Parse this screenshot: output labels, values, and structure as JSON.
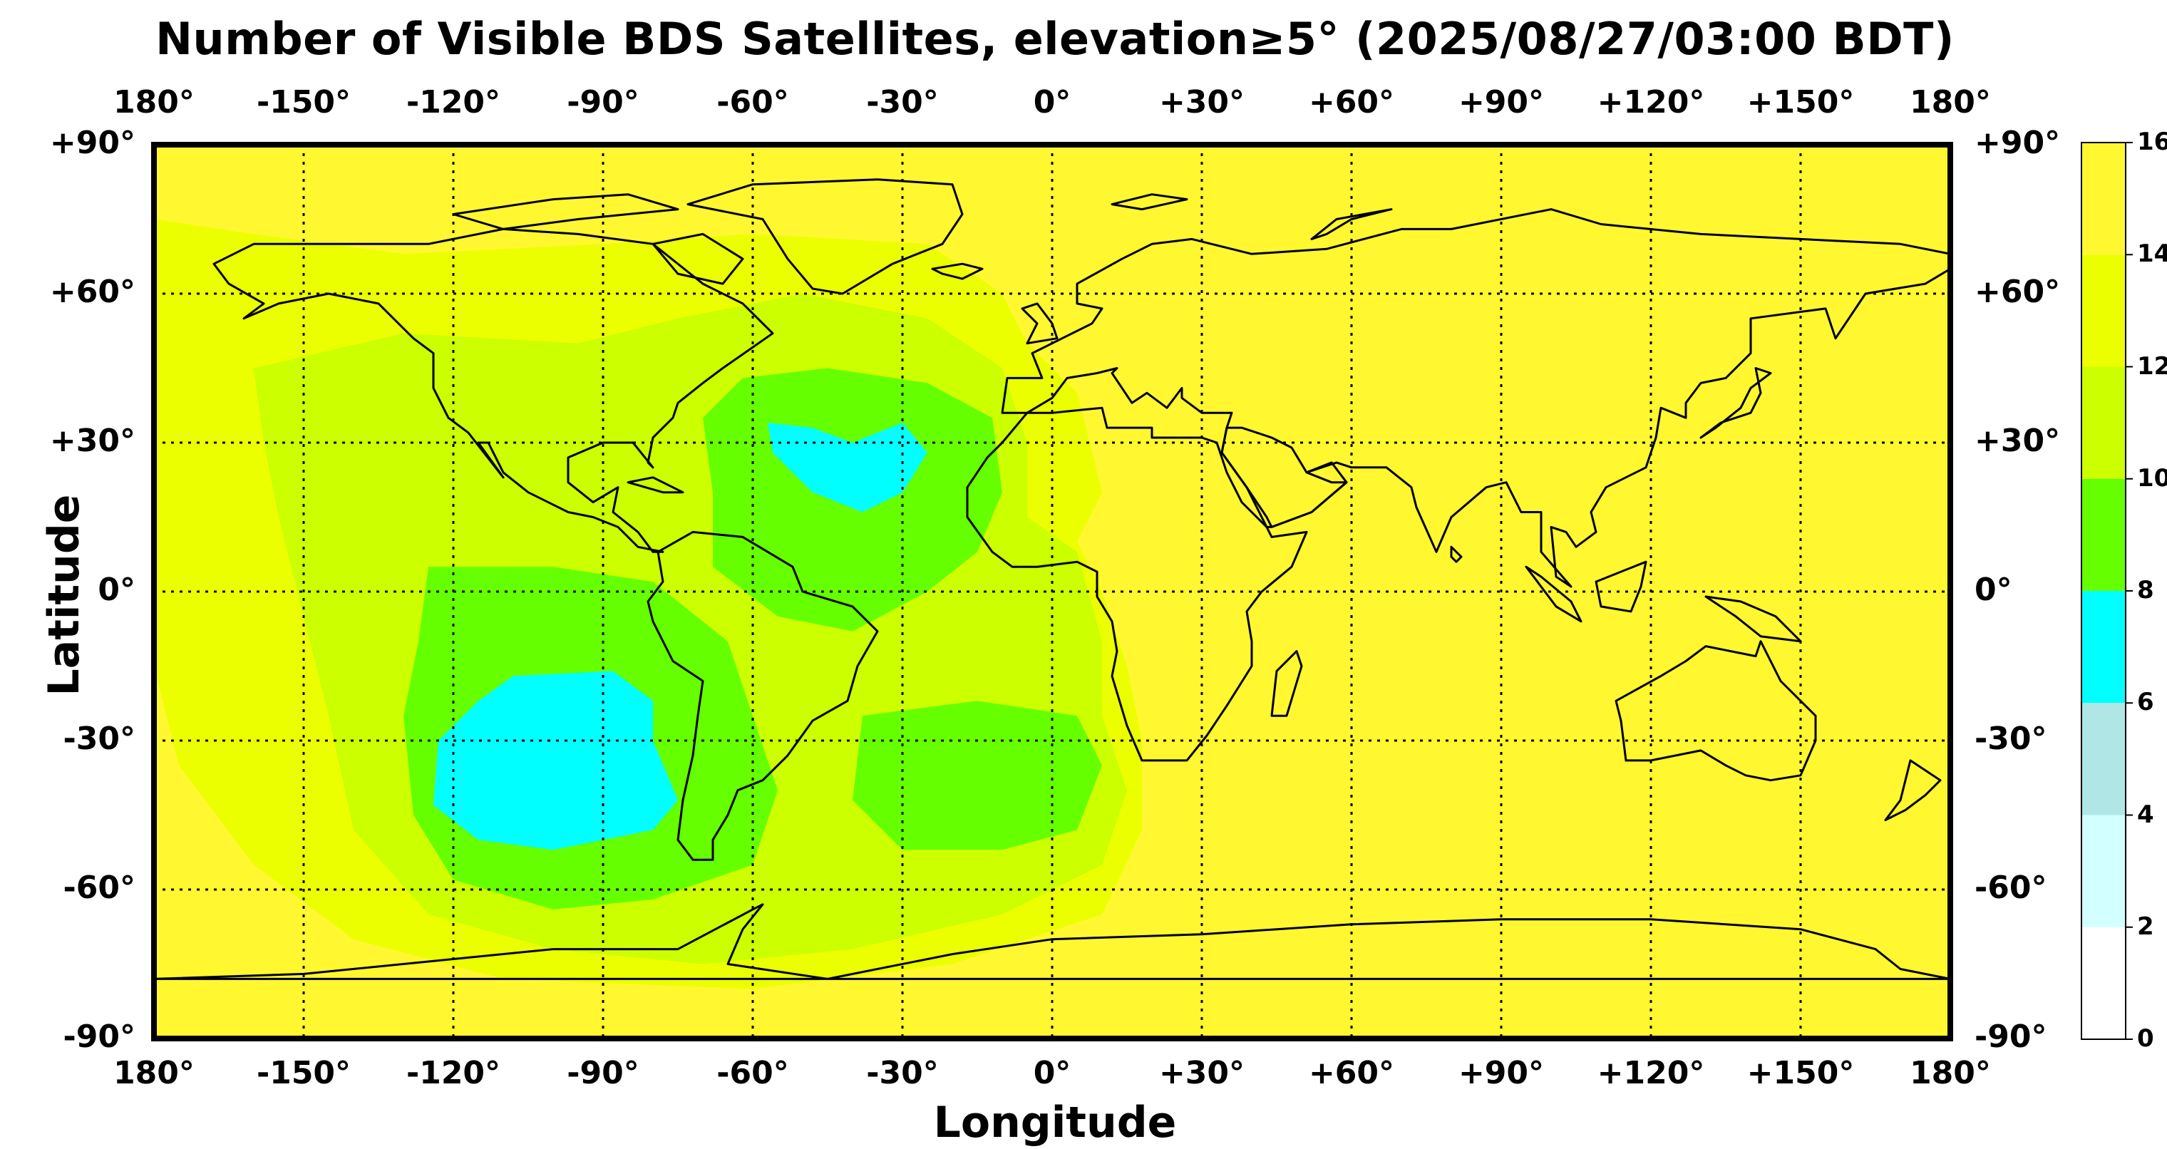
{
  "title": "Number of Visible BDS Satellites, elevation≥5° (2025/08/27/03:00 BDT)",
  "xlabel": "Longitude",
  "ylabel": "Latitude",
  "lon_ticks": [
    "180°",
    "-150°",
    "-120°",
    "-90°",
    "-60°",
    "-30°",
    "0°",
    "+30°",
    "+60°",
    "+90°",
    "+120°",
    "+150°",
    "180°"
  ],
  "lat_ticks": [
    "+90°",
    "+60°",
    "+30°",
    "0°",
    "-30°",
    "-60°",
    "-90°"
  ],
  "colorbar": {
    "ticks": [
      "0",
      "2",
      "4",
      "6",
      "8",
      "10",
      "12",
      "14",
      "16"
    ],
    "colors": [
      "#ffffff",
      "#d2ffff",
      "#b0e6e6",
      "#00ffff",
      "#00ffff",
      "#66ff00",
      "#ccff00",
      "#ecff00",
      "#fff730"
    ]
  },
  "chart_data": {
    "type": "heatmap",
    "title": "Number of Visible BDS Satellites, elevation≥5° (2025/08/27/03:00 BDT)",
    "xlabel": "Longitude",
    "ylabel": "Latitude",
    "xlim": [
      -180,
      180
    ],
    "ylim": [
      -90,
      90
    ],
    "grid": true,
    "colorbar_range": [
      0,
      16
    ],
    "background_value": 15,
    "regions": [
      {
        "value": 12,
        "lon": [
          -180,
          20
        ],
        "lat": [
          -80,
          75
        ]
      },
      {
        "value": 10,
        "lon": [
          -150,
          10
        ],
        "lat": [
          -75,
          45
        ]
      },
      {
        "value": 8,
        "lon": [
          -130,
          -40
        ],
        "lat": [
          -65,
          5
        ]
      },
      {
        "value": 8,
        "lon": [
          -70,
          -10
        ],
        "lat": [
          -5,
          45
        ]
      },
      {
        "value": 8,
        "lon": [
          -40,
          10
        ],
        "lat": [
          -55,
          -25
        ]
      },
      {
        "value": 6,
        "lon": [
          -125,
          -75
        ],
        "lat": [
          -55,
          -15
        ]
      },
      {
        "value": 6,
        "lon": [
          -60,
          -25
        ],
        "lat": [
          15,
          35
        ]
      }
    ]
  }
}
